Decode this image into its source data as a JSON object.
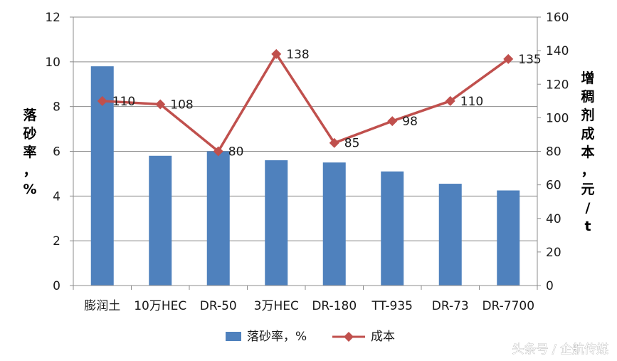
{
  "chart_data": {
    "type": "bar+line",
    "categories": [
      "膨润土",
      "10万HEC",
      "DR-50",
      "3万HEC",
      "DR-180",
      "TT-935",
      "DR-73",
      "DR-7700"
    ],
    "series": [
      {
        "name": "落砂率，%",
        "type": "bar",
        "axis": "left",
        "values": [
          9.8,
          5.8,
          6.0,
          5.6,
          5.5,
          5.1,
          4.55,
          4.25
        ],
        "color": "#4f81bd"
      },
      {
        "name": "成本",
        "type": "line",
        "axis": "right",
        "values": [
          110,
          108,
          80,
          138,
          85,
          98,
          110,
          135
        ],
        "color": "#c0504d"
      }
    ],
    "ylabel_left": "落砂率，%",
    "ylabel_right": "增稠剂成本，元/t",
    "ylim_left": [
      0,
      12
    ],
    "yticks_left": [
      0,
      2,
      4,
      6,
      8,
      10,
      12
    ],
    "ylim_right": [
      0,
      160
    ],
    "yticks_right": [
      0,
      20,
      40,
      60,
      80,
      100,
      120,
      140,
      160
    ],
    "data_labels": [
      "110",
      "108",
      "80",
      "138",
      "85",
      "98",
      "110",
      "135"
    ],
    "grid": true,
    "legend_position": "bottom"
  },
  "watermark": "头条号 / 企航传媒"
}
